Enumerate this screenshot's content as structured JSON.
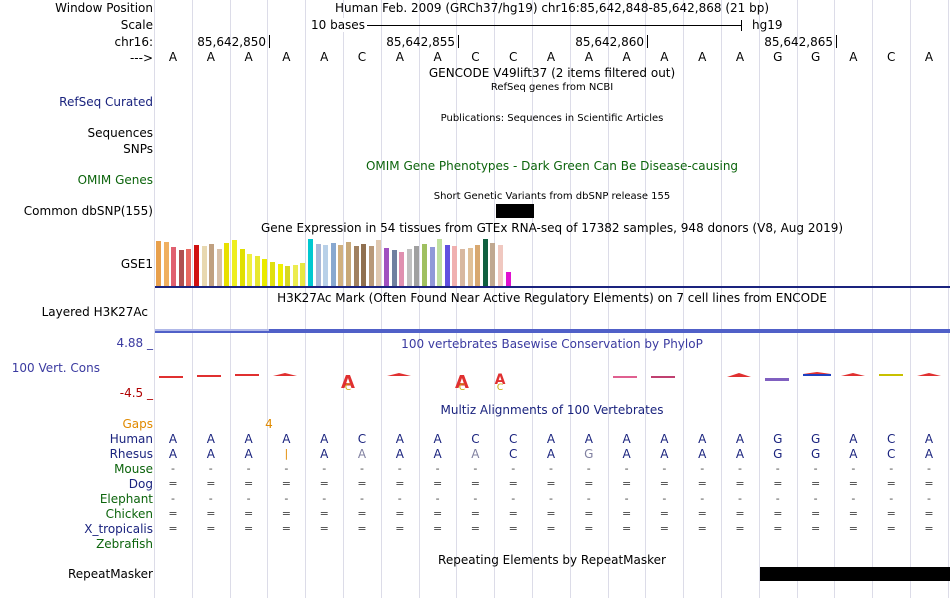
{
  "window_label": "Window Position",
  "window_value": "Human Feb. 2009 (GRCh37/hg19)   chr16:85,642,848-85,642,868 (21 bp)",
  "scale_label": "Scale",
  "scale_text": "10 bases",
  "scale_assembly": "hg19",
  "chrom_label": "chr16:",
  "ticks": [
    "85,642,850",
    "85,642,855",
    "85,642,860",
    "85,642,865"
  ],
  "arrow_label": "--->",
  "sequence": [
    "A",
    "A",
    "A",
    "A",
    "A",
    "C",
    "A",
    "A",
    "C",
    "C",
    "A",
    "A",
    "A",
    "A",
    "A",
    "A",
    "G",
    "G",
    "A",
    "C",
    "A"
  ],
  "gencode_title": "GENCODE V49lift37 (2 items filtered out)",
  "refseq_subtitle": "RefSeq genes from NCBI",
  "refseq_label": "RefSeq Curated",
  "pubs_subtitle": "Publications: Sequences in Scientific Articles",
  "sequences_label": "Sequences",
  "snps_label": "SNPs",
  "omim_title": "OMIM Gene Phenotypes - Dark Green Can Be Disease-causing",
  "omim_label": "OMIM Genes",
  "dbsnp_title": "Short Genetic Variants from dbSNP release 155",
  "dbsnp_label": "Common dbSNP(155)",
  "gtex_title": "Gene Expression in 54 tissues from GTEx RNA-seq of 17382 samples, 948 donors (V8, Aug 2019)",
  "gtex_label": "GSE1",
  "gtex_bars": [
    {
      "color": "#e8a04c",
      "value": 0.93
    },
    {
      "color": "#f0b060",
      "value": 0.91
    },
    {
      "color": "#e06070",
      "value": 0.82
    },
    {
      "color": "#b05050",
      "value": 0.76
    },
    {
      "color": "#e86860",
      "value": 0.78
    },
    {
      "color": "#d01010",
      "value": 0.85
    },
    {
      "color": "#e8d8b0",
      "value": 0.84
    },
    {
      "color": "#c0a080",
      "value": 0.88
    },
    {
      "color": "#d8c0a8",
      "value": 0.78
    },
    {
      "color": "#e8e000",
      "value": 0.9
    },
    {
      "color": "#eeee20",
      "value": 0.96
    },
    {
      "color": "#e0e000",
      "value": 0.78
    },
    {
      "color": "#f0f040",
      "value": 0.66
    },
    {
      "color": "#e8e830",
      "value": 0.62
    },
    {
      "color": "#eaea00",
      "value": 0.56
    },
    {
      "color": "#e0e010",
      "value": 0.5
    },
    {
      "color": "#f0f000",
      "value": 0.46
    },
    {
      "color": "#d8d820",
      "value": 0.42
    },
    {
      "color": "#ecec50",
      "value": 0.44
    },
    {
      "color": "#e8e840",
      "value": 0.48
    },
    {
      "color": "#00c8d0",
      "value": 0.98
    },
    {
      "color": "#a8b8d8",
      "value": 0.88
    },
    {
      "color": "#b8d0e8",
      "value": 0.86
    },
    {
      "color": "#88a8d0",
      "value": 0.9
    },
    {
      "color": "#d0b080",
      "value": 0.86
    },
    {
      "color": "#c8a878",
      "value": 0.92
    },
    {
      "color": "#a08060",
      "value": 0.84
    },
    {
      "color": "#907050",
      "value": 0.88
    },
    {
      "color": "#b89878",
      "value": 0.84
    },
    {
      "color": "#e0c8b0",
      "value": 0.96
    },
    {
      "color": "#a050c0",
      "value": 0.8
    },
    {
      "color": "#7080a0",
      "value": 0.74
    },
    {
      "color": "#e090b0",
      "value": 0.7
    },
    {
      "color": "#c0c0c0",
      "value": 0.78
    },
    {
      "color": "#a0a0a0",
      "value": 0.84
    },
    {
      "color": "#a0c060",
      "value": 0.88
    },
    {
      "color": "#9098d8",
      "value": 0.82
    },
    {
      "color": "#c0e0a0",
      "value": 0.98
    },
    {
      "color": "#6050e0",
      "value": 0.86
    },
    {
      "color": "#f0b0b0",
      "value": 0.84
    },
    {
      "color": "#d8b8a0",
      "value": 0.78
    },
    {
      "color": "#e0c098",
      "value": 0.8
    },
    {
      "color": "#d8a870",
      "value": 0.86
    },
    {
      "color": "#106040",
      "value": 0.98
    },
    {
      "color": "#c0a890",
      "value": 0.9
    },
    {
      "color": "#f0c8c0",
      "value": 0.86
    },
    {
      "color": "#e010d0",
      "value": 0.3
    }
  ],
  "h3k_title": "H3K27Ac Mark (Often Found Near Active Regulatory Elements) on 7 cell lines from ENCODE",
  "h3k_label": "Layered H3K27Ac",
  "cons_max": "4.88 _",
  "cons_min": "-4.5 _",
  "cons_title": "100 vertebrates Basewise Conservation by PhyloP",
  "cons_label": "100 Vert. Cons",
  "multiz_title": "Multiz Alignments of 100 Vertebrates",
  "gaps_label": "Gaps",
  "gaps_value": "4",
  "species": [
    {
      "name": "Human",
      "seq": [
        "A",
        "A",
        "A",
        "A",
        "A",
        "C",
        "A",
        "A",
        "C",
        "C",
        "A",
        "A",
        "A",
        "A",
        "A",
        "A",
        "G",
        "G",
        "A",
        "C",
        "A"
      ]
    },
    {
      "name": "Rhesus",
      "seq": [
        "A",
        "A",
        "A",
        "|",
        "A",
        "A",
        "A",
        "A",
        "A",
        "C",
        "A",
        "G",
        "A",
        "A",
        "A",
        "A",
        "G",
        "G",
        "A",
        "C",
        "A"
      ]
    },
    {
      "name": "Mouse",
      "seq": [
        "-",
        "-",
        "-",
        "-",
        "-",
        "-",
        "-",
        "-",
        "-",
        "-",
        "-",
        "-",
        "-",
        "-",
        "-",
        "-",
        "-",
        "-",
        "-",
        "-",
        "-"
      ]
    },
    {
      "name": "Dog",
      "seq": [
        "=",
        "=",
        "=",
        "=",
        "=",
        "=",
        "=",
        "=",
        "=",
        "=",
        "=",
        "=",
        "=",
        "=",
        "=",
        "=",
        "=",
        "=",
        "=",
        "=",
        "="
      ]
    },
    {
      "name": "Elephant",
      "seq": [
        "-",
        "-",
        "-",
        "-",
        "-",
        "-",
        "-",
        "-",
        "-",
        "-",
        "-",
        "-",
        "-",
        "-",
        "-",
        "-",
        "-",
        "-",
        "-",
        "-",
        "-"
      ]
    },
    {
      "name": "Chicken",
      "seq": [
        "=",
        "=",
        "=",
        "=",
        "=",
        "=",
        "=",
        "=",
        "=",
        "=",
        "=",
        "=",
        "=",
        "=",
        "=",
        "=",
        "=",
        "=",
        "=",
        "=",
        "="
      ]
    },
    {
      "name": "X_tropicalis",
      "seq": [
        "=",
        "=",
        "=",
        "=",
        "=",
        "=",
        "=",
        "=",
        "=",
        "=",
        "=",
        "=",
        "=",
        "=",
        "=",
        "=",
        "=",
        "=",
        "=",
        "=",
        "="
      ]
    },
    {
      "name": "Zebrafish",
      "seq": [
        "",
        "",
        "",
        "",
        "",
        "",
        "",
        "",
        "",
        "",
        "",
        "",
        "",
        "",
        "",
        "",
        "",
        "",
        "",
        "",
        ""
      ]
    }
  ],
  "repeat_title": "Repeating Elements by RepeatMasker",
  "repeat_label": "RepeatMasker"
}
